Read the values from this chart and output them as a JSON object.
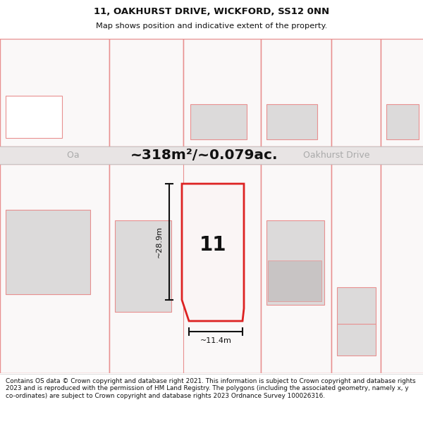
{
  "title_line1": "11, OAKHURST DRIVE, WICKFORD, SS12 0NN",
  "title_line2": "Map shows position and indicative extent of the property.",
  "footer_text": "Contains OS data © Crown copyright and database right 2021. This information is subject to Crown copyright and database rights 2023 and is reproduced with the permission of HM Land Registry. The polygons (including the associated geometry, namely x, y co-ordinates) are subject to Crown copyright and database rights 2023 Ordnance Survey 100026316.",
  "area_label": "~318m²/~0.079ac.",
  "width_label": "~11.4m",
  "height_label": "~28.9m",
  "property_number": "11",
  "map_bg": "#faf8f8",
  "road_fill": "#e8e4e4",
  "road_border": "#c8c4c4",
  "poly_red": "#dd2222",
  "poly_red_bg": "#f5eded",
  "poly_light_red": "#e89090",
  "gray_fill": "#dcdada",
  "white_fill": "#ffffff",
  "dim_color": "#111111",
  "title_color": "#111111",
  "street_color": "#aaaaaa",
  "footer_color": "#111111"
}
